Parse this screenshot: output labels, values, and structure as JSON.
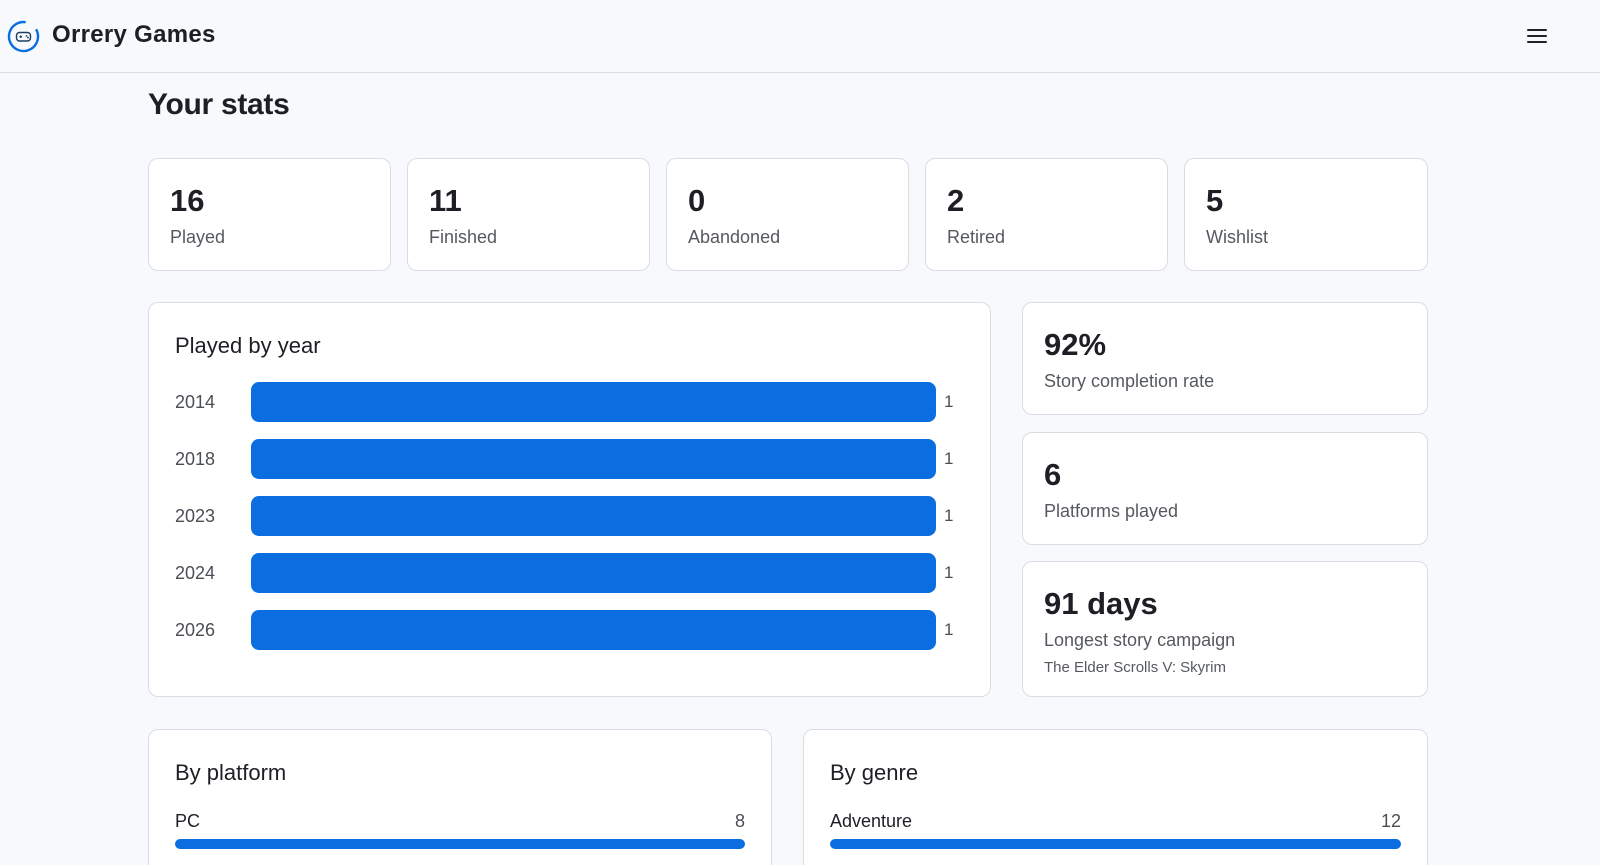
{
  "app": {
    "name": "Orrery Games"
  },
  "page": {
    "title": "Your stats"
  },
  "stats": [
    {
      "value": "16",
      "label": "Played"
    },
    {
      "value": "11",
      "label": "Finished"
    },
    {
      "value": "0",
      "label": "Abandoned"
    },
    {
      "value": "2",
      "label": "Retired"
    },
    {
      "value": "5",
      "label": "Wishlist"
    }
  ],
  "played_by_year": {
    "title": "Played by year",
    "rows": [
      {
        "year": "2014",
        "count": "1"
      },
      {
        "year": "2018",
        "count": "1"
      },
      {
        "year": "2023",
        "count": "1"
      },
      {
        "year": "2024",
        "count": "1"
      },
      {
        "year": "2026",
        "count": "1"
      }
    ]
  },
  "side_stats": {
    "completion": {
      "value": "92%",
      "label": "Story completion rate"
    },
    "platforms": {
      "value": "6",
      "label": "Platforms played"
    },
    "longest": {
      "value": "91 days",
      "label": "Longest story campaign",
      "sub": "The Elder Scrolls V: Skyrim"
    }
  },
  "by_platform": {
    "title": "By platform",
    "rows": [
      {
        "label": "PC",
        "count": "8"
      }
    ]
  },
  "by_genre": {
    "title": "By genre",
    "rows": [
      {
        "label": "Adventure",
        "count": "12"
      }
    ]
  },
  "colors": {
    "accent": "#0b6ee0",
    "border": "#d9dde3",
    "background": "#f7f9fc"
  },
  "icons": {
    "logo": "gamepad-icon",
    "menu": "hamburger-menu-icon"
  }
}
